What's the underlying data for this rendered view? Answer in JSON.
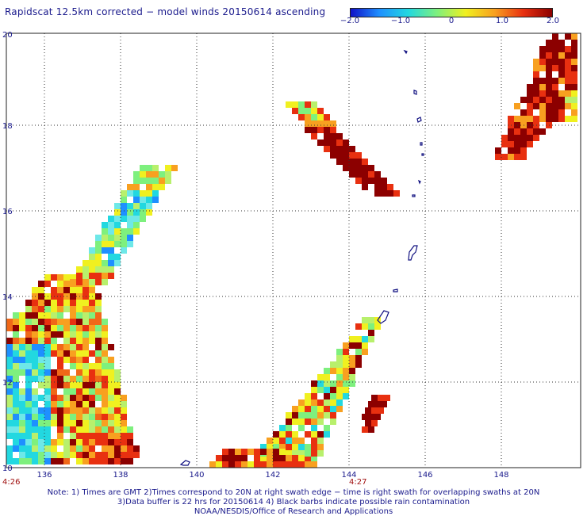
{
  "title": "Rapidscat 12.5km corrected − model winds 20150614 ascending",
  "colorbar": {
    "labels": [
      "−2.0",
      "−1.0",
      "0",
      "1.0",
      "2.0"
    ],
    "range": [
      -2.0,
      2.0
    ],
    "colors": [
      "#1010c8",
      "#1e90ff",
      "#22d8e0",
      "#7ef07e",
      "#f0f020",
      "#f8a020",
      "#e83010",
      "#8c0000"
    ]
  },
  "axes": {
    "x_ticks": [
      "136",
      "138",
      "140",
      "142",
      "144",
      "146",
      "148"
    ],
    "y_ticks": [
      "20",
      "18",
      "16",
      "14",
      "12",
      "10"
    ],
    "grid": "dotted"
  },
  "time_labels": [
    "4:26",
    "4:27"
  ],
  "footer": {
    "line1": "Note: 1) Times are GMT 2)Times correspond to 20N at right swath edge − time is right swath for overlapping swaths at 20N",
    "line2": "3)Data buffer is 22 hrs for 20150614 4) Black barbs indicate possible rain contamination",
    "line3": "NOAA/NESDIS/Office of Research and Applications"
  }
}
